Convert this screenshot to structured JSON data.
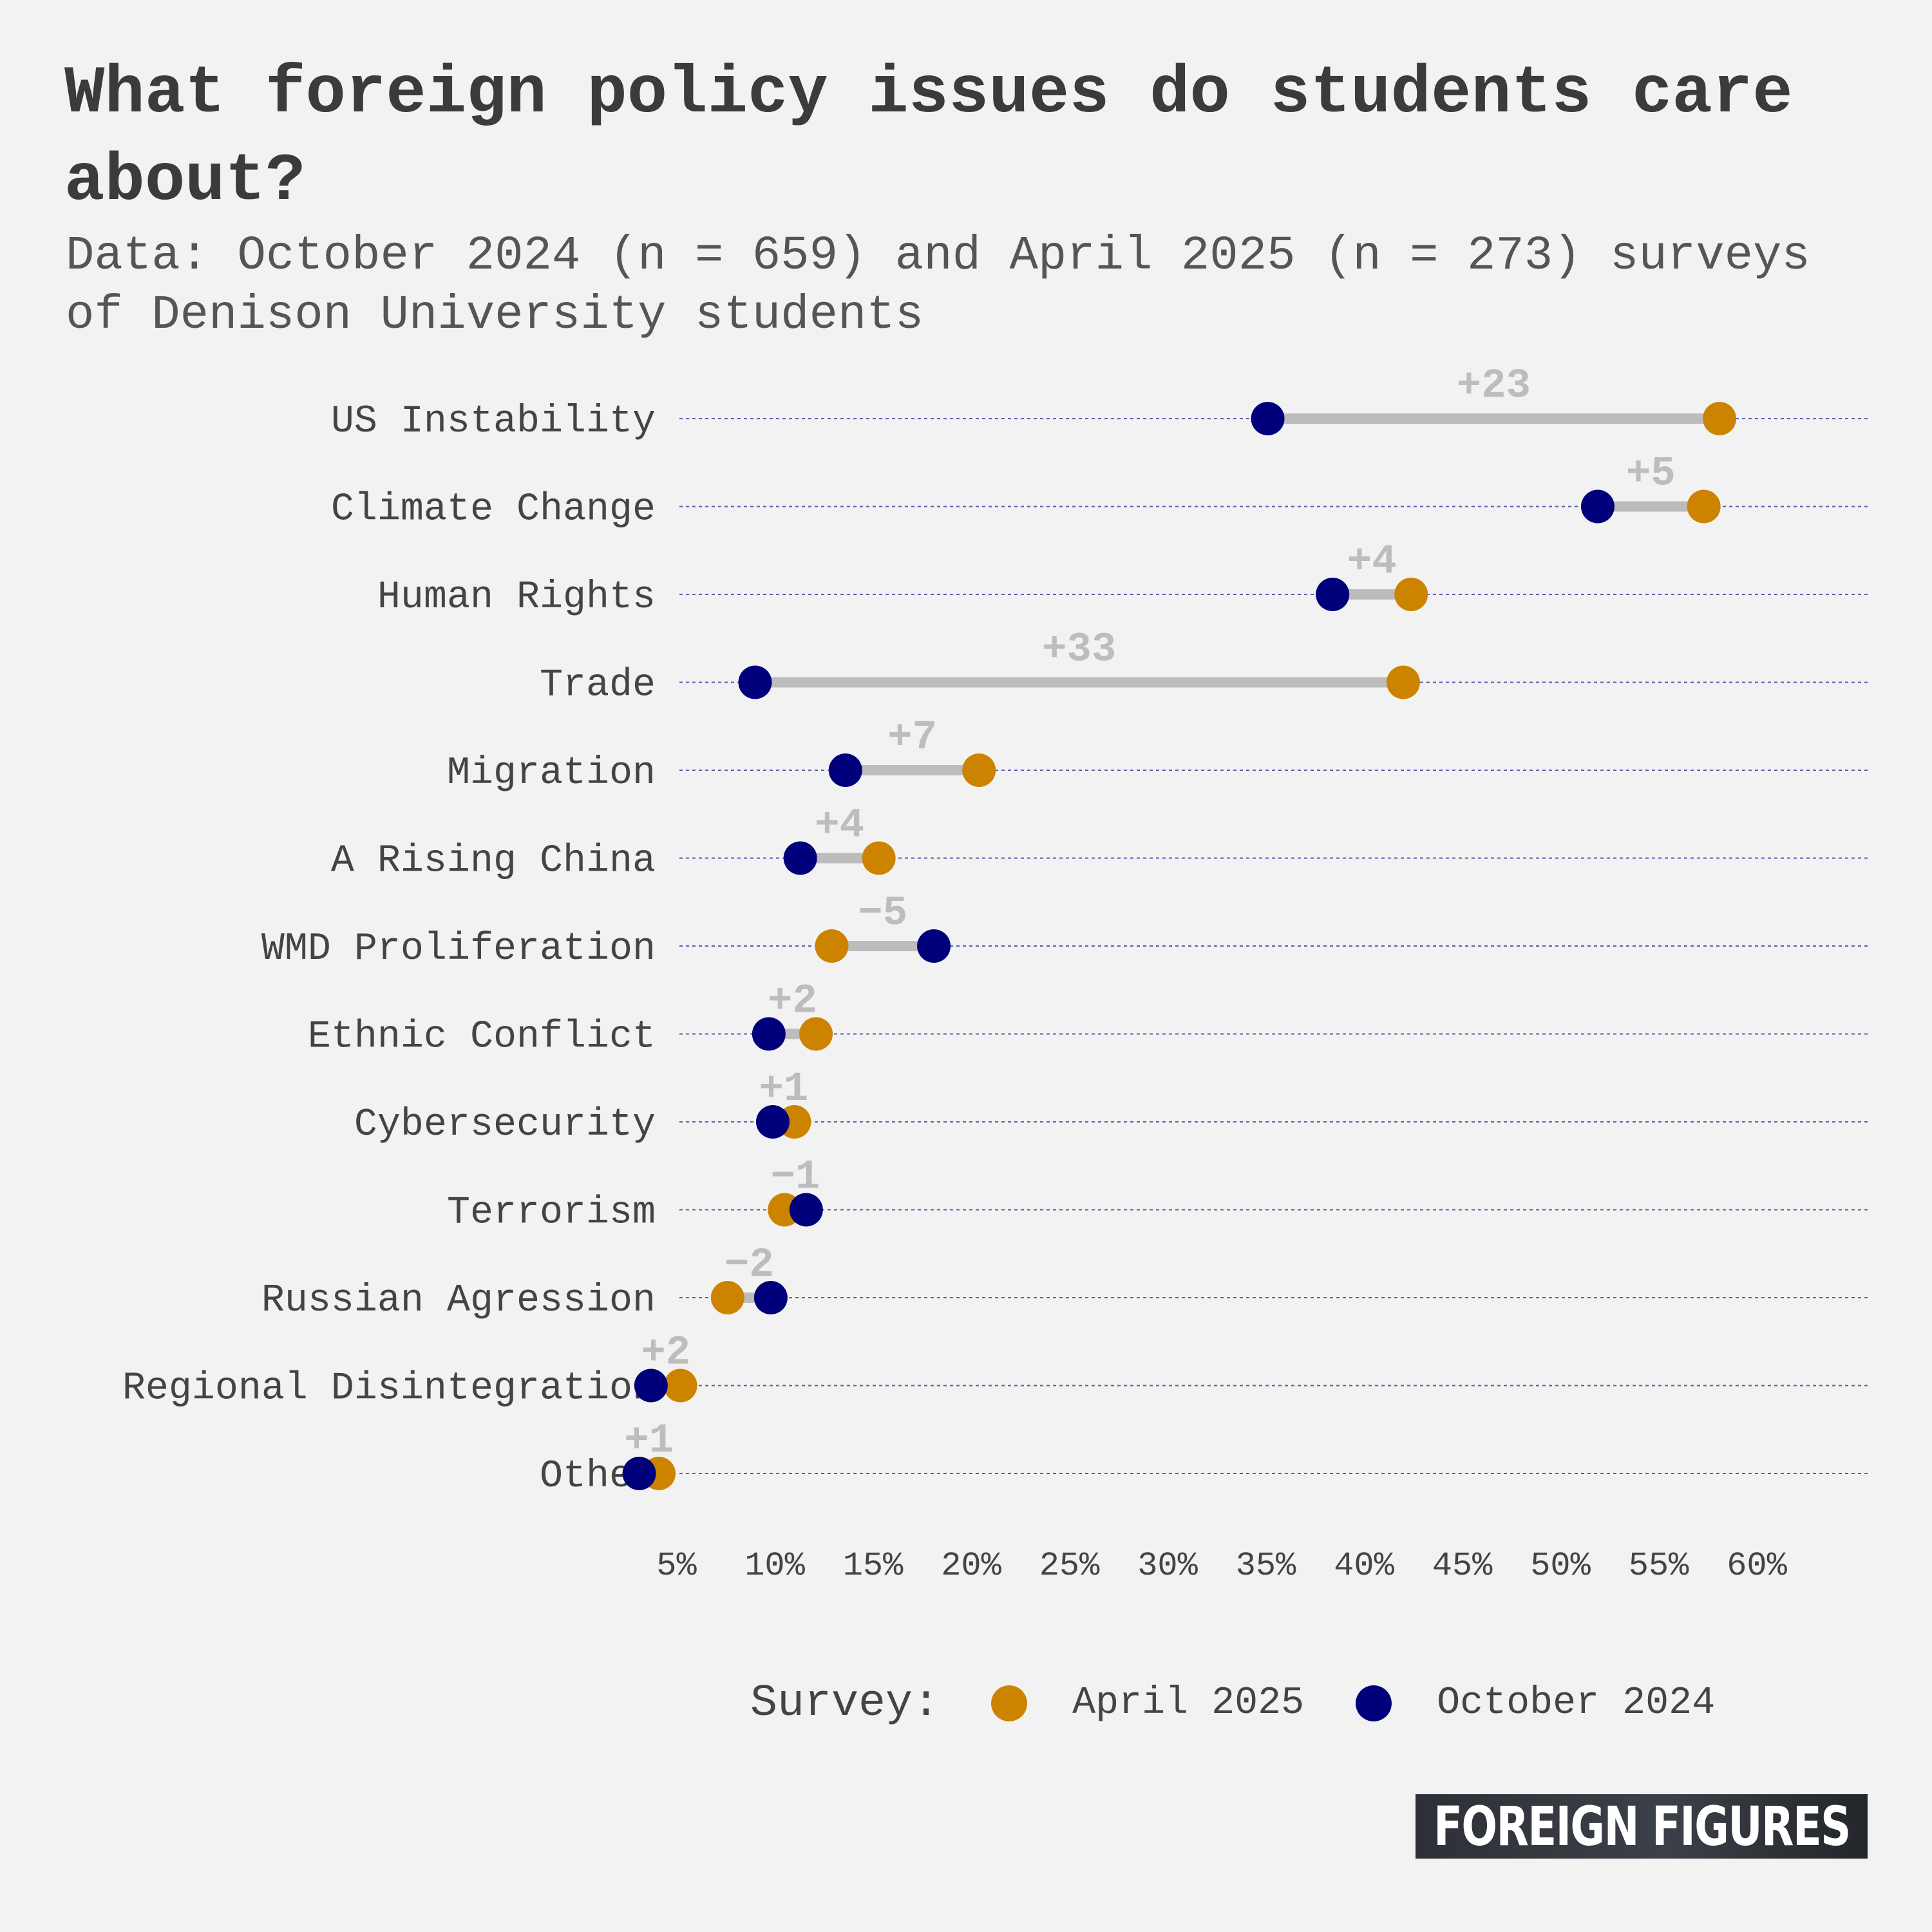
{
  "title": "What foreign policy issues do students care about?",
  "subtitle": "Data: October 2024 (n = 659) and April 2025 (n = 273) surveys of Denison University students",
  "legend": {
    "title": "Survey:",
    "items": [
      {
        "label": "April 2025",
        "color": "#cc8400"
      },
      {
        "label": "October 2024",
        "color": "#00007a"
      }
    ]
  },
  "logo": "FOREIGN FIGURES",
  "colors": {
    "april": "#cc8400",
    "october": "#00007a",
    "connector": "#bcbcbc",
    "gridline": "#2b2b9a",
    "label_text": "#444444",
    "diff_text": "#bdbdbd"
  },
  "chart_data": {
    "type": "dumbbell",
    "x_tick_labels": [
      "5%",
      "10%",
      "15%",
      "20%",
      "25%",
      "30%",
      "35%",
      "40%",
      "45%",
      "50%",
      "55%",
      "60%"
    ],
    "x_ticks": [
      5,
      10,
      15,
      20,
      25,
      30,
      35,
      40,
      45,
      50,
      55,
      60
    ],
    "xlim": [
      0,
      60
    ],
    "categories": [
      {
        "label": "US Instability",
        "october": 35.1,
        "april": 58.1,
        "diff": "+23"
      },
      {
        "label": "Climate Change",
        "october": 51.9,
        "april": 57.3,
        "diff": "+5"
      },
      {
        "label": "Human Rights",
        "october": 38.4,
        "april": 42.4,
        "diff": "+4"
      },
      {
        "label": "Trade",
        "october": 9.0,
        "april": 42.0,
        "diff": "+33"
      },
      {
        "label": "Migration",
        "october": 13.6,
        "april": 20.4,
        "diff": "+7"
      },
      {
        "label": "A Rising China",
        "october": 11.3,
        "april": 15.3,
        "diff": "+4"
      },
      {
        "label": "WMD Proliferation",
        "october": 18.1,
        "april": 12.9,
        "diff": "−5"
      },
      {
        "label": "Ethnic Conflict",
        "october": 9.7,
        "april": 12.1,
        "diff": "+2"
      },
      {
        "label": "Cybersecurity",
        "october": 9.9,
        "april": 11.0,
        "diff": "+1"
      },
      {
        "label": "Terrorism",
        "october": 11.6,
        "april": 10.5,
        "diff": "−1"
      },
      {
        "label": "Russian Agression",
        "october": 9.8,
        "april": 7.6,
        "diff": "−2"
      },
      {
        "label": "Regional Disintegration",
        "october": 3.7,
        "april": 5.2,
        "diff": "+2"
      },
      {
        "label": "Other",
        "october": 3.1,
        "april": 4.1,
        "diff": "+1"
      }
    ]
  }
}
